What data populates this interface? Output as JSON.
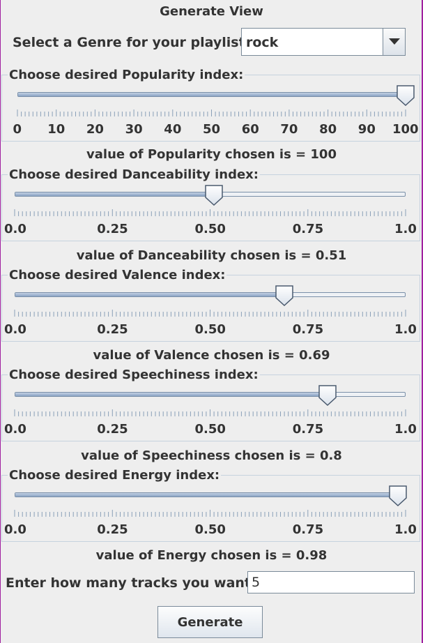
{
  "window": {
    "title": "Generate View"
  },
  "genre": {
    "label": "Select a Genre for your playlist:",
    "selected": "rock"
  },
  "sliders": [
    {
      "title": "Choose desired Popularity index:",
      "value": 100,
      "min": 0,
      "max": 100,
      "tick_labels": [
        "0",
        "10",
        "20",
        "30",
        "40",
        "50",
        "60",
        "70",
        "80",
        "90",
        "100"
      ],
      "value_text": "value of Popularity chosen is = 100"
    },
    {
      "title": "Choose desired Danceability index:",
      "value": 0.51,
      "min": 0,
      "max": 1,
      "tick_labels": [
        "0.0",
        "0.25",
        "0.50",
        "0.75",
        "1.0"
      ],
      "value_text": "value of Danceability chosen is = 0.51"
    },
    {
      "title": "Choose desired Valence index:",
      "value": 0.69,
      "min": 0,
      "max": 1,
      "tick_labels": [
        "0.0",
        "0.25",
        "0.50",
        "0.75",
        "1.0"
      ],
      "value_text": "value of Valence chosen is = 0.69"
    },
    {
      "title": "Choose desired Speechiness index:",
      "value": 0.8,
      "min": 0,
      "max": 1,
      "tick_labels": [
        "0.0",
        "0.25",
        "0.50",
        "0.75",
        "1.0"
      ],
      "value_text": "value of Speechiness chosen is = 0.8"
    },
    {
      "title": "Choose desired Energy index:",
      "value": 0.98,
      "min": 0,
      "max": 1,
      "tick_labels": [
        "0.0",
        "0.25",
        "0.50",
        "0.75",
        "1.0"
      ],
      "value_text": "value of Energy chosen is = 0.98"
    }
  ],
  "tracks": {
    "label": "Enter how many tracks you want:",
    "value": "5"
  },
  "generate_button": {
    "label": "Generate"
  },
  "colors": {
    "panel_border": "#c6d2de",
    "track_fill": "#8aa3c4",
    "background": "#eeeeee"
  },
  "icons": {
    "combo_arrow": "chevron-down-icon"
  }
}
